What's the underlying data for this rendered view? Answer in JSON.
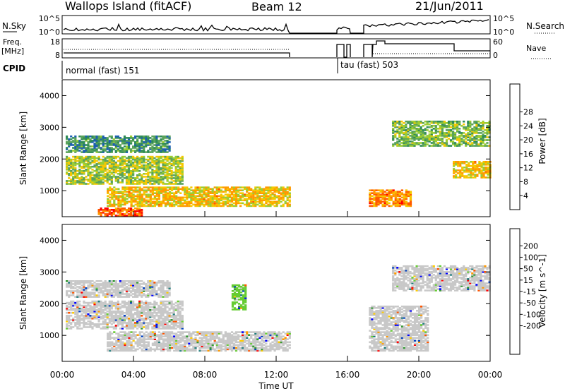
{
  "header": {
    "station": "Wallops Island (fitACF)",
    "beam": "Beam 12",
    "date": "21/Jun/2011"
  },
  "noise_panel": {
    "left_label": "N.Sky",
    "right_label": "N.Search",
    "left_ticks": [
      "10^5",
      "10^0"
    ],
    "right_ticks": [
      "10^5",
      "10^0"
    ]
  },
  "freq_panel": {
    "left_label_1": "Freq.",
    "left_label_2": "[MHz]",
    "right_label": "Nave",
    "left_ticks": [
      "18",
      "8"
    ],
    "right_ticks": [
      "60",
      "0"
    ]
  },
  "cpid_panel": {
    "label": "CPID",
    "program_1": "normal (fast) 151",
    "program_2": "tau (fast) 503"
  },
  "x_axis": {
    "label": "Time UT",
    "ticks": [
      "00:00",
      "04:00",
      "08:00",
      "12:00",
      "16:00",
      "20:00",
      "00:00"
    ]
  },
  "colors": {
    "power": [
      "#0000ff",
      "#1c5fb0",
      "#2e8b57",
      "#5aa35a",
      "#9acd32",
      "#f5c800",
      "#ff9900",
      "#ff5a00",
      "#ff0000"
    ],
    "velocity": [
      "#ff0000",
      "#ff5500",
      "#ff9900",
      "#ffcc00",
      "#c8c8c8",
      "#c8c8c8",
      "#66cc33",
      "#339933",
      "#1c7c7c",
      "#0040c0",
      "#0000ff"
    ]
  },
  "chart_data": [
    {
      "type": "heatmap",
      "title": "Power",
      "ylabel": "Slant Range [km]",
      "xlabel": "Time UT",
      "xlim_hours": [
        0,
        24
      ],
      "ylim": [
        180,
        4500
      ],
      "yticks": [
        "1000",
        "2000",
        "3000",
        "4000"
      ],
      "colorbar": {
        "label": "Power [dB]",
        "ticks": [
          "4",
          "8",
          "12",
          "16",
          "20",
          "24",
          "28"
        ]
      },
      "echo_regions": [
        {
          "t0": 0.2,
          "t1": 6.8,
          "r0": 1200,
          "r1": 2100,
          "level": 16
        },
        {
          "t0": 0.2,
          "t1": 6.0,
          "r0": 2200,
          "r1": 2700,
          "level": 10
        },
        {
          "t0": 2.0,
          "t1": 4.5,
          "r0": 200,
          "r1": 450,
          "level": 26
        },
        {
          "t0": 2.5,
          "t1": 12.8,
          "r0": 500,
          "r1": 1100,
          "level": 20
        },
        {
          "t0": 17.2,
          "t1": 19.5,
          "r0": 500,
          "r1": 1000,
          "level": 24
        },
        {
          "t0": 18.5,
          "t1": 24.0,
          "r0": 2400,
          "r1": 3200,
          "level": 14
        },
        {
          "t0": 21.9,
          "t1": 24.0,
          "r0": 1400,
          "r1": 1900,
          "level": 20
        }
      ]
    },
    {
      "type": "heatmap",
      "title": "Velocity",
      "ylabel": "Slant Range [km]",
      "xlabel": "Time UT",
      "xlim_hours": [
        0,
        24
      ],
      "ylim": [
        180,
        4500
      ],
      "yticks": [
        "1000",
        "2000",
        "3000",
        "4000"
      ],
      "colorbar": {
        "label": "Velocity [m s^-1]",
        "ticks": [
          "200",
          "100",
          "50",
          "15",
          "-15",
          "-50",
          "-100",
          "-200"
        ]
      },
      "echo_regions": [
        {
          "t0": 0.2,
          "t1": 6.8,
          "r0": 1200,
          "r1": 2100,
          "level": 0
        },
        {
          "t0": 0.2,
          "t1": 6.0,
          "r0": 2200,
          "r1": 2700,
          "level": 0
        },
        {
          "t0": 2.5,
          "t1": 12.8,
          "r0": 500,
          "r1": 1100,
          "level": 0
        },
        {
          "t0": 9.5,
          "t1": 10.3,
          "r0": 1800,
          "r1": 2600,
          "level": 60
        },
        {
          "t0": 17.2,
          "t1": 20.5,
          "r0": 500,
          "r1": 1900,
          "level": 0
        },
        {
          "t0": 18.5,
          "t1": 24.0,
          "r0": 2400,
          "r1": 3200,
          "level": 0
        }
      ]
    }
  ]
}
